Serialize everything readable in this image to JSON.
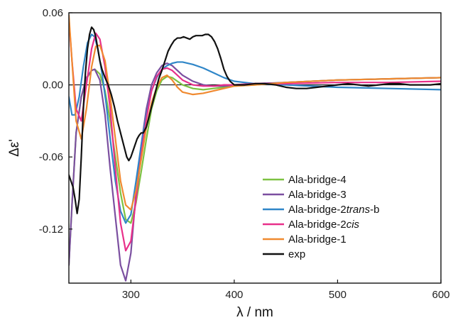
{
  "chart_data": {
    "type": "line",
    "xlabel": "λ / nm",
    "ylabel": "Δε'",
    "xlim": [
      240,
      600
    ],
    "ylim": [
      -0.165,
      0.06
    ],
    "x_ticks": [
      300,
      400,
      500,
      600
    ],
    "y_ticks": [
      0.06,
      0.0,
      -0.06,
      -0.12
    ],
    "x_tick_labels": [
      "300",
      "400",
      "500",
      "600"
    ],
    "y_tick_labels": [
      "0.06",
      "0.00",
      "-0.06",
      "-0.12"
    ],
    "zero_line": true,
    "grid": false,
    "legend_position": "bottom-right",
    "series": [
      {
        "name": "Ala-bridge-4",
        "legend_parts": [
          {
            "text": "Ala-bridge-4",
            "italic": false
          }
        ],
        "color": "#7dc242",
        "x": [
          240,
          243,
          247,
          252,
          257,
          262,
          265,
          270,
          275,
          280,
          285,
          290,
          295,
          300,
          305,
          310,
          315,
          320,
          325,
          330,
          335,
          340,
          345,
          350,
          360,
          370,
          380,
          390,
          400,
          420,
          450,
          500,
          550,
          600
        ],
        "y": [
          -0.15,
          -0.1,
          -0.04,
          -0.01,
          0.005,
          0.012,
          0.013,
          0.009,
          -0.005,
          -0.03,
          -0.06,
          -0.09,
          -0.112,
          -0.115,
          -0.098,
          -0.072,
          -0.045,
          -0.02,
          -0.005,
          0.004,
          0.007,
          0.006,
          0.003,
          0.0,
          -0.003,
          -0.004,
          -0.003,
          -0.002,
          -0.001,
          0.0,
          0.002,
          0.004,
          0.005,
          0.006
        ]
      },
      {
        "name": "Ala-bridge-3",
        "legend_parts": [
          {
            "text": "Ala-bridge-3",
            "italic": false
          }
        ],
        "color": "#7b4fa0",
        "x": [
          240,
          243,
          247,
          252,
          257,
          262,
          265,
          270,
          275,
          280,
          285,
          290,
          295,
          300,
          305,
          310,
          315,
          320,
          325,
          330,
          335,
          340,
          345,
          350,
          360,
          370,
          380,
          390,
          400,
          420,
          450,
          500,
          550,
          600
        ],
        "y": [
          -0.15,
          -0.1,
          -0.04,
          -0.01,
          0.006,
          0.012,
          0.013,
          0.004,
          -0.025,
          -0.07,
          -0.11,
          -0.15,
          -0.163,
          -0.14,
          -0.09,
          -0.05,
          -0.02,
          0.0,
          0.01,
          0.016,
          0.018,
          0.016,
          0.012,
          0.008,
          0.003,
          0.0,
          -0.001,
          -0.001,
          0.0,
          0.001,
          0.002,
          0.004,
          0.005,
          0.006
        ]
      },
      {
        "name": "Ala-bridge-2trans-b",
        "legend_parts": [
          {
            "text": "Ala-bridge-2",
            "italic": false
          },
          {
            "text": "trans",
            "italic": true
          },
          {
            "text": "-b",
            "italic": false
          }
        ],
        "color": "#2f86c8",
        "x": [
          240,
          243,
          246,
          250,
          254,
          258,
          262,
          265,
          268,
          272,
          276,
          280,
          285,
          290,
          295,
          300,
          305,
          310,
          315,
          320,
          325,
          330,
          335,
          340,
          345,
          350,
          360,
          370,
          380,
          390,
          400,
          420,
          450,
          500,
          550,
          600
        ],
        "y": [
          -0.01,
          -0.025,
          -0.025,
          -0.01,
          0.015,
          0.035,
          0.042,
          0.04,
          0.03,
          0.01,
          -0.015,
          -0.045,
          -0.08,
          -0.105,
          -0.115,
          -0.108,
          -0.08,
          -0.05,
          -0.025,
          -0.005,
          0.006,
          0.013,
          0.016,
          0.018,
          0.019,
          0.019,
          0.017,
          0.014,
          0.01,
          0.006,
          0.003,
          0.001,
          0.0,
          -0.002,
          -0.003,
          -0.004
        ]
      },
      {
        "name": "Ala-bridge-2cis",
        "legend_parts": [
          {
            "text": "Ala-bridge-2",
            "italic": false
          },
          {
            "text": "cis",
            "italic": true
          }
        ],
        "color": "#e8308a",
        "x": [
          240,
          243,
          247,
          252,
          257,
          262,
          266,
          270,
          275,
          280,
          285,
          290,
          295,
          300,
          305,
          310,
          315,
          320,
          325,
          330,
          335,
          340,
          345,
          350,
          360,
          370,
          380,
          390,
          400,
          420,
          450,
          500,
          550,
          600
        ],
        "y": [
          0.055,
          0.02,
          -0.02,
          -0.03,
          0.0,
          0.03,
          0.043,
          0.038,
          0.015,
          -0.02,
          -0.07,
          -0.115,
          -0.138,
          -0.13,
          -0.095,
          -0.058,
          -0.028,
          -0.005,
          0.007,
          0.013,
          0.014,
          0.012,
          0.008,
          0.004,
          0.0,
          -0.001,
          -0.001,
          0.0,
          0.0,
          0.001,
          0.001,
          0.002,
          0.002,
          0.003
        ]
      },
      {
        "name": "Ala-bridge-1",
        "legend_parts": [
          {
            "text": "Ala-bridge-1",
            "italic": false
          }
        ],
        "color": "#f08a30",
        "x": [
          240,
          243,
          247,
          252,
          257,
          262,
          266,
          270,
          275,
          280,
          285,
          290,
          295,
          300,
          305,
          310,
          315,
          320,
          325,
          330,
          335,
          340,
          345,
          350,
          360,
          370,
          380,
          390,
          400,
          420,
          450,
          500,
          550,
          600
        ],
        "y": [
          0.058,
          0.02,
          -0.03,
          -0.045,
          -0.02,
          0.015,
          0.032,
          0.033,
          0.02,
          -0.01,
          -0.045,
          -0.08,
          -0.1,
          -0.104,
          -0.088,
          -0.062,
          -0.035,
          -0.015,
          -0.002,
          0.006,
          0.008,
          0.004,
          -0.002,
          -0.006,
          -0.008,
          -0.007,
          -0.005,
          -0.003,
          -0.001,
          0.0,
          0.002,
          0.004,
          0.005,
          0.006
        ]
      },
      {
        "name": "exp",
        "legend_parts": [
          {
            "text": "exp",
            "italic": false
          }
        ],
        "color": "#111111",
        "x": [
          240,
          242,
          244,
          246,
          248,
          250,
          252,
          254,
          256,
          258,
          260,
          262,
          264,
          266,
          268,
          270,
          272,
          275,
          278,
          281,
          284,
          287,
          290,
          293,
          296,
          298,
          300,
          302,
          304,
          306,
          308,
          310,
          312,
          315,
          318,
          321,
          324,
          327,
          330,
          333,
          336,
          339,
          342,
          345,
          348,
          351,
          354,
          357,
          360,
          363,
          366,
          369,
          372,
          375,
          378,
          381,
          384,
          387,
          390,
          393,
          396,
          400,
          410,
          420,
          430,
          440,
          450,
          460,
          470,
          480,
          490,
          500,
          510,
          520,
          530,
          540,
          550,
          560,
          570,
          580,
          590,
          600
        ],
        "y": [
          -0.075,
          -0.08,
          -0.085,
          -0.095,
          -0.107,
          -0.095,
          -0.06,
          -0.02,
          0.01,
          0.03,
          0.042,
          0.048,
          0.046,
          0.04,
          0.03,
          0.02,
          0.013,
          0.006,
          0.0,
          -0.008,
          -0.018,
          -0.03,
          -0.04,
          -0.05,
          -0.06,
          -0.063,
          -0.06,
          -0.055,
          -0.05,
          -0.045,
          -0.042,
          -0.04,
          -0.04,
          -0.035,
          -0.025,
          -0.015,
          -0.005,
          0.005,
          0.012,
          0.02,
          0.028,
          0.033,
          0.037,
          0.039,
          0.039,
          0.04,
          0.039,
          0.038,
          0.04,
          0.041,
          0.041,
          0.041,
          0.042,
          0.042,
          0.04,
          0.036,
          0.03,
          0.022,
          0.013,
          0.007,
          0.003,
          0.0,
          0.0,
          0.001,
          0.001,
          0.0,
          -0.002,
          -0.003,
          -0.003,
          -0.002,
          -0.001,
          0.0,
          0.001,
          0.0,
          -0.001,
          0.0,
          0.001,
          0.001,
          0.0,
          0.0,
          0.0,
          0.001
        ]
      }
    ]
  }
}
